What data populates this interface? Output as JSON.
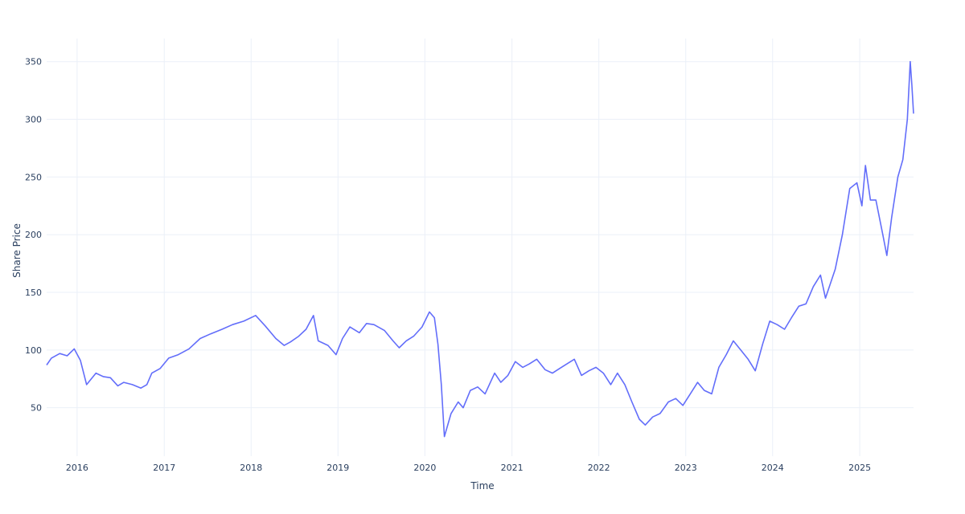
{
  "chart_data": {
    "type": "line",
    "title": "",
    "xlabel": "Time",
    "ylabel": "Share Price",
    "x_ticks": [
      "2016",
      "2017",
      "2018",
      "2019",
      "2020",
      "2021",
      "2022",
      "2023",
      "2024",
      "2025"
    ],
    "y_ticks": [
      50,
      100,
      150,
      200,
      250,
      300,
      350
    ],
    "xlim": [
      "2015-08-26",
      "2025-08-15"
    ],
    "ylim": [
      8,
      370
    ],
    "grid": true,
    "line_color": "#636efa",
    "series": [
      {
        "x": [
          "2015-08-26",
          "2015-09-15",
          "2015-10-20",
          "2015-11-20",
          "2015-12-20",
          "2016-01-15",
          "2016-02-10",
          "2016-03-20",
          "2016-04-20",
          "2016-05-20",
          "2016-06-20",
          "2016-07-15",
          "2016-08-20",
          "2016-09-25",
          "2016-10-20",
          "2016-11-10",
          "2016-12-15",
          "2017-01-20",
          "2017-03-01",
          "2017-04-15",
          "2017-06-01",
          "2017-07-15",
          "2017-09-01",
          "2017-10-15",
          "2017-12-01",
          "2018-01-20",
          "2018-03-01",
          "2018-04-15",
          "2018-05-20",
          "2018-06-15",
          "2018-07-20",
          "2018-08-20",
          "2018-09-20",
          "2018-10-10",
          "2018-11-20",
          "2018-12-24",
          "2019-01-20",
          "2019-02-20",
          "2019-04-01",
          "2019-05-01",
          "2019-06-01",
          "2019-07-15",
          "2019-08-20",
          "2019-09-15",
          "2019-10-15",
          "2019-11-15",
          "2019-12-20",
          "2020-01-20",
          "2020-02-10",
          "2020-02-25",
          "2020-03-10",
          "2020-03-23",
          "2020-04-20",
          "2020-05-20",
          "2020-06-10",
          "2020-07-10",
          "2020-08-10",
          "2020-09-10",
          "2020-10-20",
          "2020-11-15",
          "2020-12-15",
          "2021-01-15",
          "2021-02-15",
          "2021-03-15",
          "2021-04-15",
          "2021-05-20",
          "2021-06-20",
          "2021-07-20",
          "2021-08-20",
          "2021-09-20",
          "2021-10-20",
          "2021-11-20",
          "2021-12-20",
          "2022-01-20",
          "2022-02-20",
          "2022-03-20",
          "2022-04-20",
          "2022-05-20",
          "2022-06-20",
          "2022-07-15",
          "2022-08-15",
          "2022-09-15",
          "2022-10-20",
          "2022-11-20",
          "2022-12-20",
          "2023-01-20",
          "2023-02-20",
          "2023-03-20",
          "2023-04-20",
          "2023-05-20",
          "2023-06-20",
          "2023-07-20",
          "2023-08-20",
          "2023-09-20",
          "2023-10-20",
          "2023-11-20",
          "2023-12-20",
          "2024-01-20",
          "2024-02-20",
          "2024-03-20",
          "2024-04-20",
          "2024-05-20",
          "2024-06-20",
          "2024-07-20",
          "2024-08-10",
          "2024-09-20",
          "2024-10-20",
          "2024-11-20",
          "2024-12-20",
          "2025-01-10",
          "2025-01-25",
          "2025-02-15",
          "2025-03-10",
          "2025-04-08",
          "2025-04-25",
          "2025-05-15",
          "2025-06-10",
          "2025-07-01",
          "2025-07-20",
          "2025-08-01",
          "2025-08-08",
          "2025-08-15"
        ],
        "values": [
          87,
          93,
          97,
          95,
          101,
          91,
          70,
          80,
          77,
          76,
          69,
          72,
          70,
          67,
          70,
          80,
          84,
          93,
          96,
          101,
          110,
          114,
          118,
          122,
          125,
          130,
          121,
          110,
          104,
          107,
          112,
          118,
          130,
          108,
          104,
          96,
          110,
          120,
          115,
          123,
          122,
          117,
          108,
          102,
          108,
          112,
          120,
          133,
          128,
          105,
          70,
          25,
          45,
          55,
          50,
          65,
          68,
          62,
          80,
          72,
          78,
          90,
          85,
          88,
          92,
          83,
          80,
          84,
          88,
          92,
          78,
          82,
          85,
          80,
          70,
          80,
          70,
          55,
          40,
          35,
          42,
          45,
          55,
          58,
          52,
          62,
          72,
          65,
          62,
          85,
          96,
          108,
          100,
          92,
          82,
          105,
          125,
          122,
          118,
          128,
          138,
          140,
          155,
          165,
          145,
          170,
          200,
          240,
          245,
          225,
          260,
          230,
          230,
          200,
          182,
          215,
          250,
          265,
          300,
          350,
          330,
          305
        ]
      }
    ]
  }
}
